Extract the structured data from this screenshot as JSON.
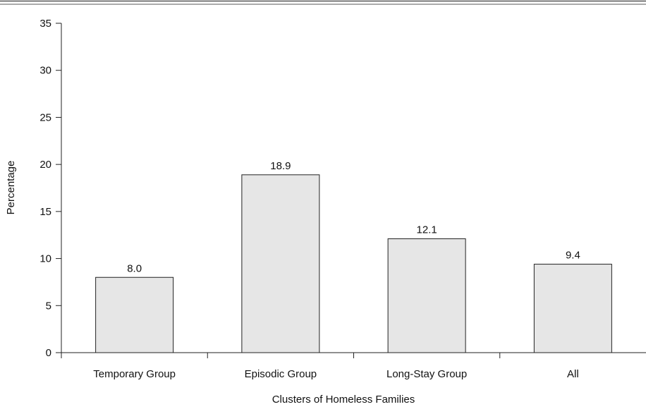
{
  "chart_data": {
    "type": "bar",
    "title": "",
    "xlabel": "Clusters of Homeless Families",
    "ylabel": "Percentage",
    "categories": [
      "Temporary Group",
      "Episodic Group",
      "Long-Stay Group",
      "All"
    ],
    "values": [
      8.0,
      18.9,
      12.1,
      9.4
    ],
    "data_labels": [
      "8.0",
      "18.9",
      "12.1",
      "9.4"
    ],
    "ylim": [
      0,
      35
    ],
    "yticks": [
      0,
      5,
      10,
      15,
      20,
      25,
      30,
      35
    ],
    "grid": false,
    "legend": "none",
    "colors": {
      "bar_fill": "#e6e6e6",
      "bar_stroke": "#222222",
      "axis": "#222222",
      "rule": "#555555"
    }
  }
}
